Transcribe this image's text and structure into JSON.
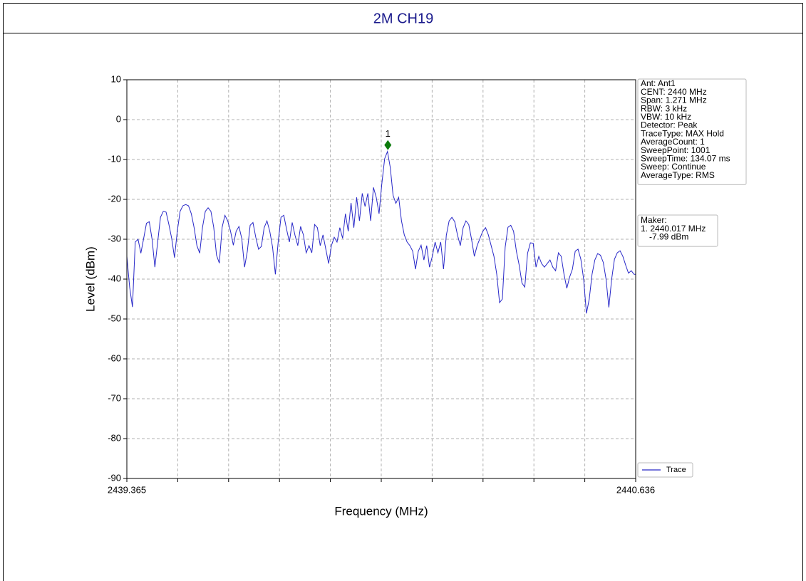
{
  "chart_data": {
    "type": "line",
    "title": "2M CH19",
    "xlabel": "Frequency (MHz)",
    "ylabel": "Level (dBm)",
    "xlim": [
      2439.365,
      2440.636
    ],
    "ylim": [
      -90,
      10
    ],
    "xticks": [
      2439.365,
      {
        "value": 2439.4921,
        "label": null
      },
      {
        "value": 2439.6192,
        "label": null
      },
      {
        "value": 2439.7463,
        "label": null
      },
      {
        "value": 2439.8734,
        "label": null
      },
      {
        "value": 2440.0005,
        "label": null
      },
      {
        "value": 2440.1276,
        "label": null
      },
      {
        "value": 2440.2547,
        "label": null
      },
      {
        "value": 2440.3818,
        "label": null
      },
      {
        "value": 2440.5089,
        "label": null
      },
      2440.636
    ],
    "yticks": [
      10,
      0,
      -10,
      -20,
      -30,
      -40,
      -50,
      -60,
      -70,
      -80,
      -90
    ],
    "grid": true,
    "legend": "lower right",
    "x": [
      2439.365,
      2439.372,
      2439.379,
      2439.386,
      2439.393,
      2439.4,
      2439.407,
      2439.414,
      2439.421,
      2439.428,
      2439.435,
      2439.442,
      2439.449,
      2439.456,
      2439.463,
      2439.47,
      2439.477,
      2439.484,
      2439.491,
      2439.498,
      2439.505,
      2439.512,
      2439.519,
      2439.526,
      2439.533,
      2439.54,
      2439.547,
      2439.554,
      2439.561,
      2439.568,
      2439.575,
      2439.582,
      2439.589,
      2439.596,
      2439.603,
      2439.61,
      2439.617,
      2439.624,
      2439.631,
      2439.638,
      2439.645,
      2439.652,
      2439.659,
      2439.666,
      2439.673,
      2439.68,
      2439.687,
      2439.694,
      2439.701,
      2439.708,
      2439.715,
      2439.722,
      2439.729,
      2439.736,
      2439.743,
      2439.75,
      2439.757,
      2439.764,
      2439.771,
      2439.778,
      2439.785,
      2439.792,
      2439.799,
      2439.806,
      2439.813,
      2439.82,
      2439.827,
      2439.834,
      2439.841,
      2439.848,
      2439.855,
      2439.862,
      2439.869,
      2439.876,
      2439.883,
      2439.89,
      2439.897,
      2439.904,
      2439.911,
      2439.918,
      2439.925,
      2439.932,
      2439.939,
      2439.946,
      2439.953,
      2439.96,
      2439.967,
      2439.974,
      2439.981,
      2439.988,
      2439.995,
      2440.002,
      2440.009,
      2440.016,
      2440.023,
      2440.03,
      2440.037,
      2440.044,
      2440.051,
      2440.058,
      2440.065,
      2440.072,
      2440.079,
      2440.086,
      2440.093,
      2440.1,
      2440.107,
      2440.114,
      2440.121,
      2440.128,
      2440.135,
      2440.142,
      2440.149,
      2440.156,
      2440.163,
      2440.17,
      2440.177,
      2440.184,
      2440.191,
      2440.198,
      2440.205,
      2440.212,
      2440.219,
      2440.226,
      2440.233,
      2440.24,
      2440.247,
      2440.254,
      2440.261,
      2440.268,
      2440.275,
      2440.282,
      2440.289,
      2440.296,
      2440.303,
      2440.31,
      2440.317,
      2440.324,
      2440.331,
      2440.338,
      2440.345,
      2440.352,
      2440.359,
      2440.366,
      2440.373,
      2440.38,
      2440.387,
      2440.394,
      2440.401,
      2440.408,
      2440.415,
      2440.422,
      2440.429,
      2440.436,
      2440.443,
      2440.45,
      2440.457,
      2440.464,
      2440.471,
      2440.478,
      2440.485,
      2440.492,
      2440.499,
      2440.506,
      2440.513,
      2440.52,
      2440.527,
      2440.534,
      2440.541,
      2440.548,
      2440.555,
      2440.562,
      2440.569,
      2440.576,
      2440.583,
      2440.59,
      2440.597,
      2440.604,
      2440.611,
      2440.618,
      2440.625,
      2440.632,
      2440.636
    ],
    "series": [
      {
        "name": "Trace",
        "color": "#2828c8",
        "values": [
          -34.3,
          -42,
          -47,
          -30.7,
          -30,
          -33.5,
          -29.8,
          -26,
          -25.6,
          -30,
          -37,
          -30.7,
          -24.5,
          -23,
          -23.2,
          -26.3,
          -29.8,
          -34.6,
          -28,
          -23,
          -21.6,
          -21.3,
          -21.6,
          -23.6,
          -27.1,
          -31.6,
          -33.5,
          -27,
          -23,
          -22.1,
          -23,
          -27,
          -34,
          -36,
          -27,
          -24,
          -25.4,
          -28,
          -31.5,
          -28,
          -26.8,
          -29.8,
          -37,
          -33,
          -26.5,
          -25.8,
          -29.5,
          -32.5,
          -31.8,
          -27.1,
          -25.4,
          -28,
          -32,
          -38.8,
          -30.7,
          -24.5,
          -24,
          -27.5,
          -30.7,
          -25.8,
          -29,
          -31.6,
          -26.8,
          -28.9,
          -33.4,
          -31.6,
          -33.4,
          -26.3,
          -27.1,
          -31.6,
          -28.9,
          -32.5,
          -36.1,
          -31.6,
          -29.5,
          -30.7,
          -27.1,
          -29.8,
          -23.6,
          -28,
          -20.9,
          -27.1,
          -19.5,
          -25.4,
          -18.5,
          -21.8,
          -18.5,
          -25.4,
          -17,
          -19.5,
          -23.6,
          -16,
          -9.8,
          -8,
          -12,
          -19,
          -21,
          -19.5,
          -25.4,
          -28.9,
          -30.7,
          -31.6,
          -33,
          -37.5,
          -33,
          -31.5,
          -35.2,
          -31.6,
          -37,
          -34.3,
          -30.7,
          -33.4,
          -30.7,
          -37.5,
          -29,
          -25.4,
          -24.5,
          -25.6,
          -29,
          -31.6,
          -27.1,
          -25.4,
          -26.3,
          -30,
          -34.3,
          -31.6,
          -29.8,
          -28,
          -27.1,
          -28.9,
          -31.6,
          -34.3,
          -38.8,
          -45.9,
          -45,
          -32,
          -27,
          -26.5,
          -28,
          -33,
          -36.5,
          -41,
          -42,
          -33.5,
          -30.9,
          -31,
          -37,
          -34.3,
          -36.1,
          -37,
          -36.1,
          -35.2,
          -37,
          -37.9,
          -33.4,
          -34.3,
          -38.8,
          -42.3,
          -39.5,
          -37.5,
          -33,
          -32.5,
          -35,
          -40,
          -48.6,
          -45,
          -38.8,
          -35.2,
          -33.6,
          -34,
          -35.8,
          -40,
          -47.1,
          -40,
          -35,
          -33.4,
          -32.9,
          -34.3,
          -36.5,
          -38.5,
          -37.9,
          -38.8,
          -38.8
        ]
      }
    ],
    "marker": {
      "label": "1",
      "x": 2440.017,
      "y": -7.99,
      "color": "#0a7a0a"
    },
    "info_box": [
      "Ant: Ant1",
      "CENT: 2440 MHz",
      "Span: 1.271 MHz",
      "RBW: 3 kHz",
      "VBW: 10 kHz",
      "Detector: Peak",
      "TraceType: MAX Hold",
      "AverageCount: 1",
      "SweepPoint: 1001",
      "SweepTime: 134.07 ms",
      "Sweep: Continue",
      "AverageType: RMS"
    ],
    "marker_box": [
      "Maker:",
      "1. 2440.017 MHz",
      "-7.99 dBm"
    ]
  }
}
